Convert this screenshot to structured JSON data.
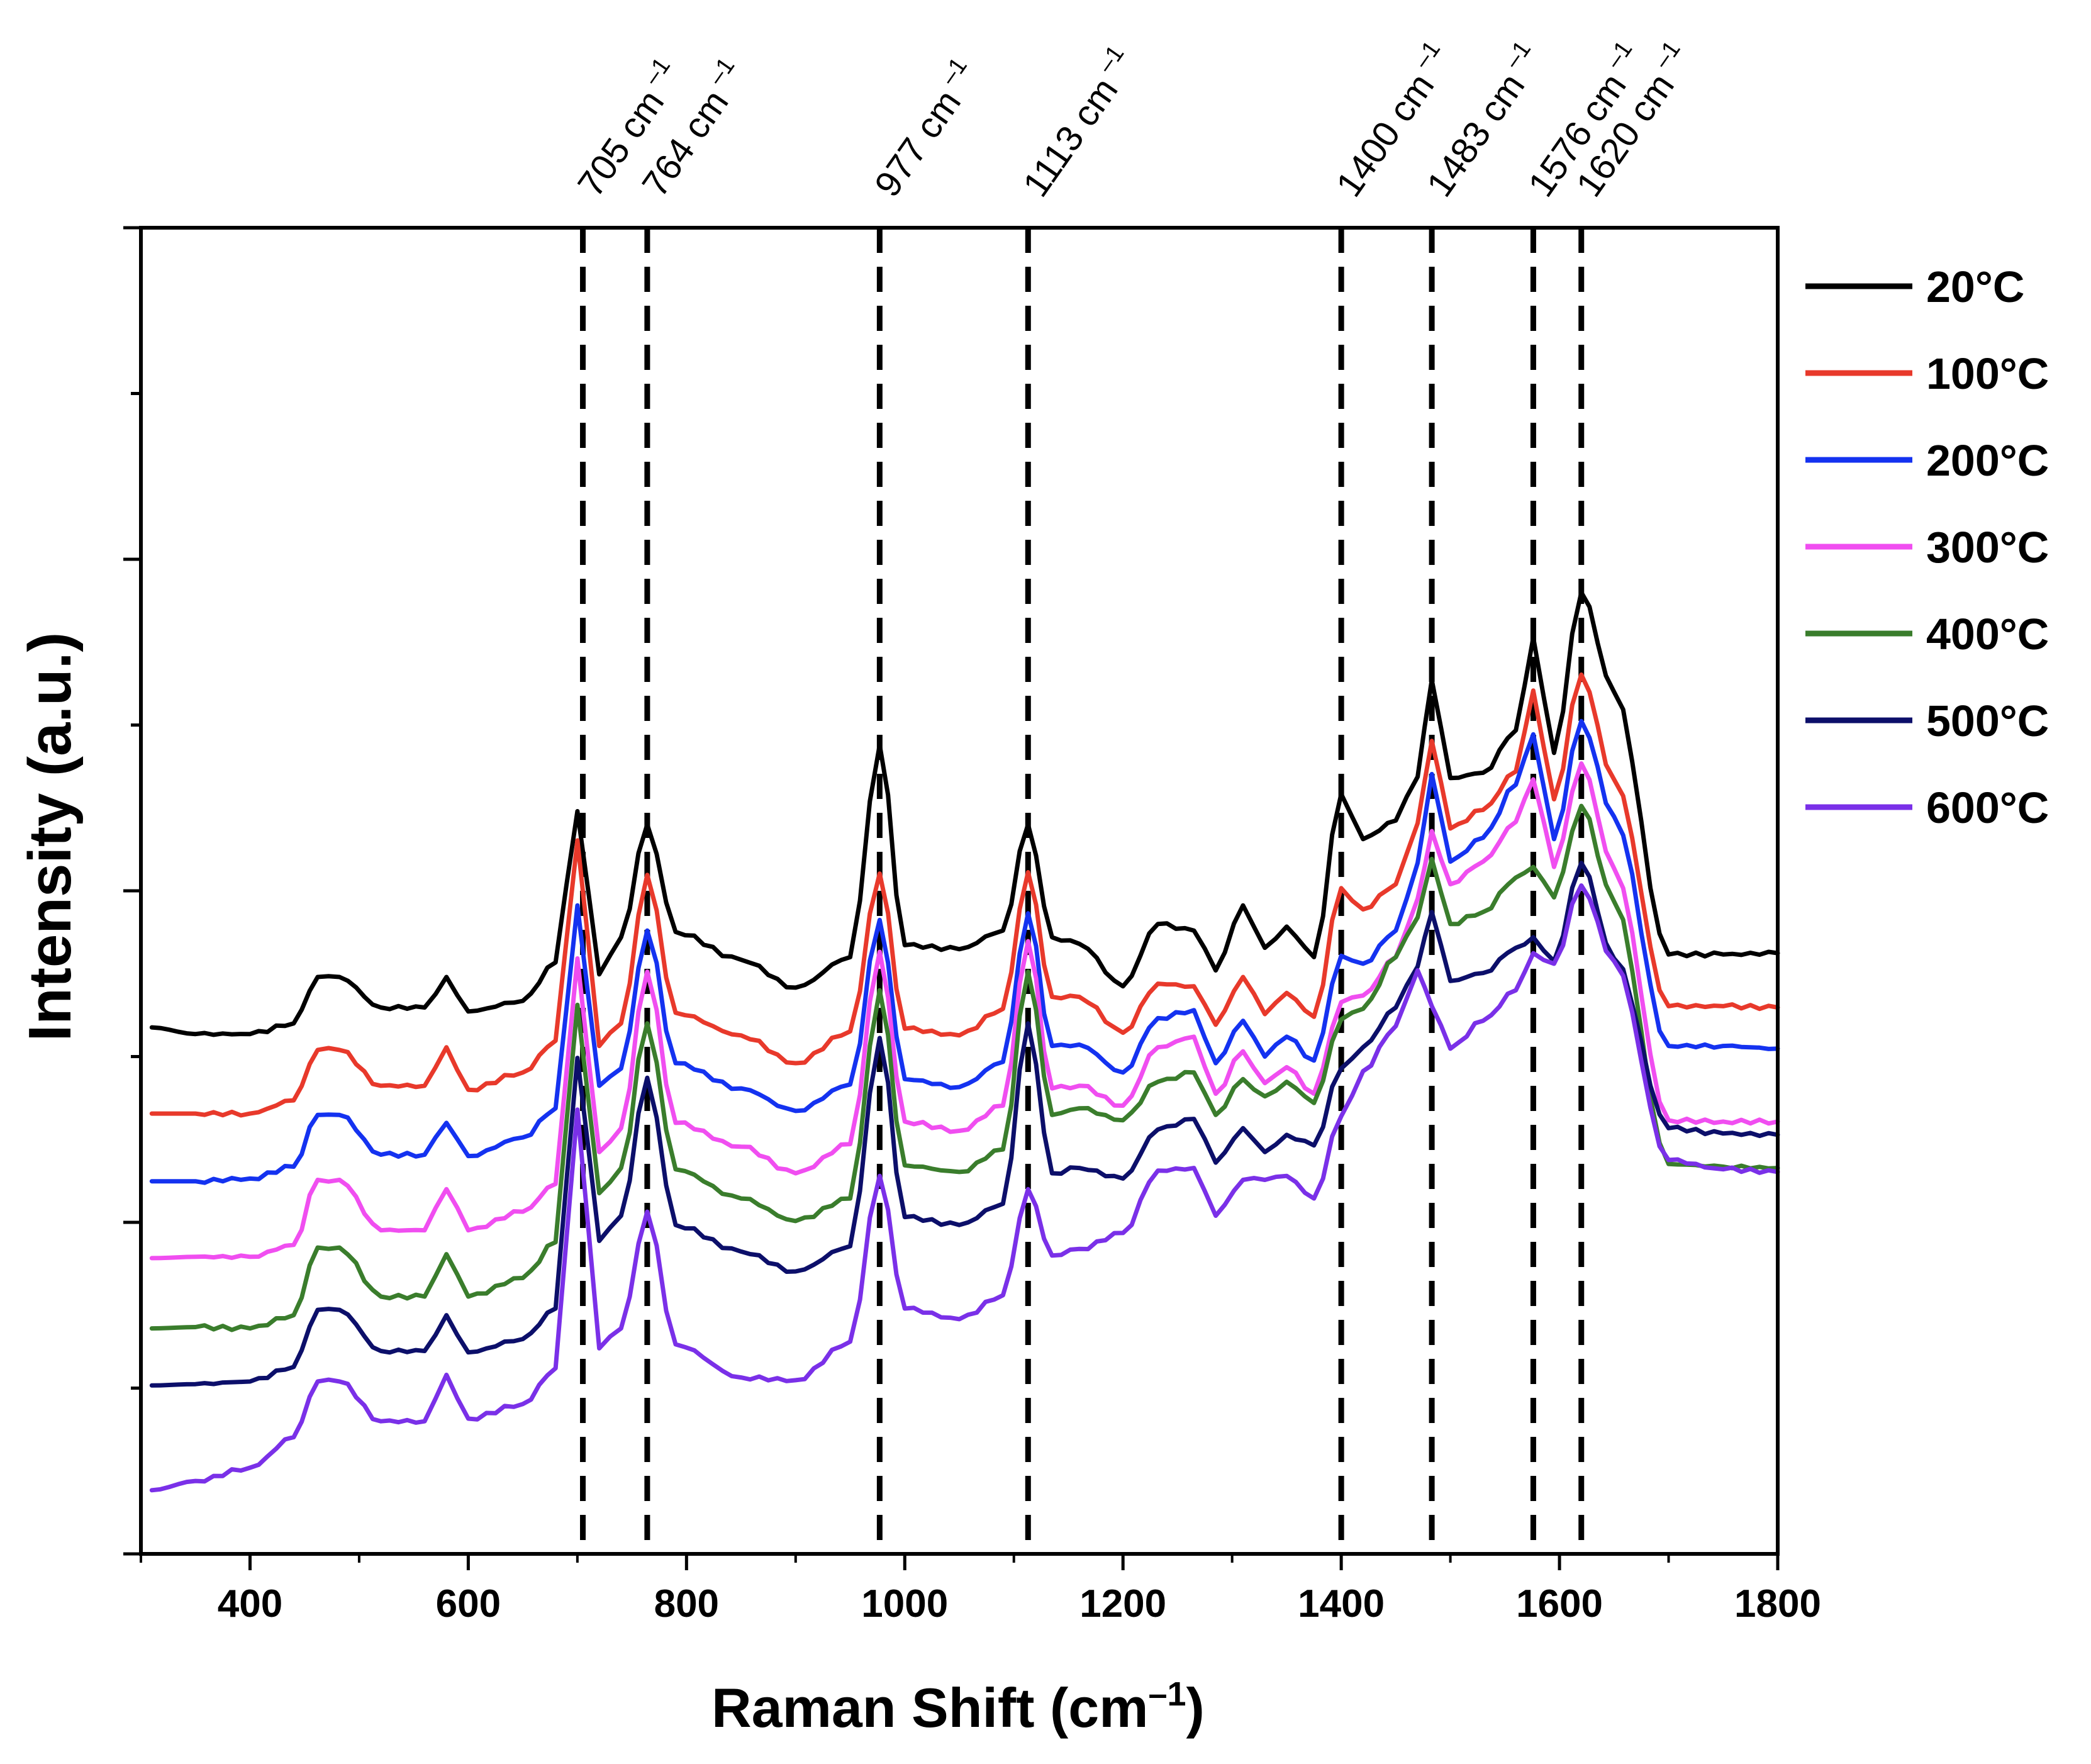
{
  "chart_data": {
    "type": "line",
    "title": "",
    "xlabel": "Raman Shift (cm",
    "xlabel_sup": "–1",
    "xlabel_close": ")",
    "ylabel": "Intensity (a.u.)",
    "xlim": [
      300,
      1800
    ],
    "ylim": [
      0,
      100
    ],
    "x_ticks": [
      400,
      600,
      800,
      1000,
      1200,
      1400,
      1600,
      1800
    ],
    "x_tick_labels": [
      "400",
      "600",
      "800",
      "1000",
      "1200",
      "1400",
      "1600",
      "1800"
    ],
    "y_tick_labels_shown": false,
    "legend_position": "right",
    "peak_lines": [
      {
        "x": 705,
        "label": "705 cm",
        "sup": "–1"
      },
      {
        "x": 764,
        "label": "764 cm",
        "sup": "–1"
      },
      {
        "x": 977,
        "label": "977 cm",
        "sup": "–1"
      },
      {
        "x": 1113,
        "label": "1113 cm",
        "sup": "–1"
      },
      {
        "x": 1400,
        "label": "1400 cm",
        "sup": "–1"
      },
      {
        "x": 1483,
        "label": "1483 cm",
        "sup": "–1"
      },
      {
        "x": 1576,
        "label": "1576 cm",
        "sup": "–1"
      },
      {
        "x": 1620,
        "label": "1620 cm",
        "sup": "–1"
      }
    ],
    "series": [
      {
        "name": "20°C",
        "color": "#000000",
        "x": [
          310,
          350,
          400,
          440,
          462,
          482,
          520,
          560,
          580,
          600,
          650,
          680,
          700,
          720,
          740,
          764,
          790,
          850,
          900,
          950,
          977,
          1000,
          1050,
          1090,
          1113,
          1135,
          1160,
          1200,
          1232,
          1265,
          1285,
          1310,
          1330,
          1350,
          1375,
          1400,
          1420,
          1450,
          1470,
          1483,
          1500,
          1530,
          1560,
          1576,
          1595,
          1620,
          1650,
          1700,
          1750,
          1800
        ],
        "y": [
          39.7,
          39.2,
          39.2,
          40,
          43.5,
          43.5,
          41.2,
          41.2,
          43.5,
          40.9,
          41.7,
          44.6,
          56,
          43.7,
          46.5,
          55,
          46.9,
          44.8,
          42.7,
          45,
          61,
          45.9,
          45.6,
          47,
          55,
          46.5,
          46,
          42.8,
          47.5,
          47,
          44,
          48.9,
          45.7,
          47.3,
          45,
          57.3,
          53.9,
          55.3,
          58.6,
          65.9,
          58.5,
          58.9,
          62.1,
          69.1,
          60.4,
          72.5,
          65,
          45.2,
          45.2,
          45.3
        ]
      },
      {
        "name": "100°C",
        "color": "#e8392b",
        "x": [
          310,
          350,
          400,
          440,
          462,
          482,
          520,
          560,
          580,
          600,
          650,
          680,
          700,
          720,
          740,
          764,
          790,
          850,
          900,
          950,
          977,
          1000,
          1050,
          1090,
          1113,
          1135,
          1160,
          1200,
          1232,
          1265,
          1285,
          1310,
          1330,
          1350,
          1375,
          1400,
          1420,
          1450,
          1470,
          1483,
          1500,
          1530,
          1560,
          1576,
          1595,
          1620,
          1650,
          1700,
          1750,
          1800
        ],
        "y": [
          33.2,
          33.2,
          33.2,
          34.2,
          38,
          38,
          35.3,
          35.3,
          38.2,
          35,
          36.3,
          38.7,
          53.8,
          38.3,
          40,
          51.2,
          40.8,
          39.1,
          37,
          39.4,
          51.3,
          39.6,
          39.1,
          41.1,
          51.4,
          42,
          42,
          39.3,
          43,
          42.8,
          39.9,
          43.5,
          40.7,
          42.3,
          40.5,
          50.2,
          48.6,
          50.5,
          55.1,
          61.3,
          54.7,
          56.1,
          59,
          65.1,
          56.9,
          66.3,
          58.4,
          41.3,
          41.3,
          41.2
        ]
      },
      {
        "name": "200°C",
        "color": "#1432f0",
        "x": [
          310,
          350,
          400,
          440,
          462,
          482,
          520,
          560,
          580,
          600,
          650,
          680,
          700,
          720,
          740,
          764,
          790,
          850,
          900,
          950,
          977,
          1000,
          1050,
          1090,
          1113,
          1135,
          1160,
          1200,
          1232,
          1265,
          1285,
          1310,
          1330,
          1350,
          1375,
          1400,
          1420,
          1450,
          1470,
          1483,
          1500,
          1530,
          1560,
          1576,
          1595,
          1620,
          1650,
          1700,
          1750,
          1800
        ],
        "y": [
          28.1,
          28.1,
          28.3,
          29.2,
          33.1,
          33.1,
          30.1,
          30.1,
          32.5,
          30,
          31.4,
          33.6,
          48.9,
          35.3,
          36.6,
          47,
          37,
          35.1,
          33.4,
          35.4,
          47.8,
          35.8,
          35.2,
          37.1,
          48.3,
          38.3,
          38.4,
          36.3,
          40.4,
          41,
          37,
          40.2,
          37.5,
          39,
          37.2,
          45.1,
          44.5,
          47,
          52.1,
          58.8,
          52.2,
          54,
          58,
          61.8,
          53.9,
          62.8,
          55.6,
          38.3,
          38.3,
          38.1
        ]
      },
      {
        "name": "300°C",
        "color": "#f04ef0",
        "x": [
          310,
          350,
          400,
          440,
          462,
          482,
          520,
          560,
          580,
          600,
          650,
          680,
          700,
          720,
          740,
          764,
          790,
          850,
          900,
          950,
          977,
          1000,
          1050,
          1090,
          1113,
          1135,
          1160,
          1200,
          1232,
          1265,
          1285,
          1310,
          1330,
          1350,
          1375,
          1400,
          1420,
          1450,
          1470,
          1483,
          1500,
          1530,
          1560,
          1576,
          1595,
          1620,
          1650,
          1700,
          1750,
          1800
        ],
        "y": [
          22.3,
          22.4,
          22.4,
          23.3,
          28.2,
          28.2,
          24.4,
          24.4,
          27.5,
          24.4,
          25.8,
          27.9,
          44.9,
          30.3,
          32.1,
          43.9,
          32.5,
          30.7,
          28.7,
          30.9,
          45.4,
          32.6,
          31.9,
          33.8,
          46.2,
          35.1,
          35.3,
          33.8,
          38.2,
          39,
          34.7,
          37.9,
          35.5,
          36.7,
          34.7,
          41.6,
          42.1,
          45,
          49.4,
          54.5,
          50.5,
          52.2,
          55.2,
          58.4,
          51.8,
          59.6,
          51.7,
          32.7,
          32.6,
          32.6
        ]
      },
      {
        "name": "400°C",
        "color": "#3a7d2c",
        "x": [
          310,
          350,
          400,
          440,
          462,
          482,
          520,
          560,
          580,
          600,
          650,
          680,
          700,
          720,
          740,
          764,
          790,
          850,
          900,
          950,
          977,
          1000,
          1050,
          1090,
          1113,
          1135,
          1160,
          1200,
          1232,
          1265,
          1285,
          1310,
          1330,
          1350,
          1375,
          1400,
          1420,
          1450,
          1470,
          1483,
          1500,
          1530,
          1560,
          1576,
          1595,
          1620,
          1650,
          1700,
          1750,
          1800
        ],
        "y": [
          17,
          17.1,
          17,
          18,
          23.1,
          23.1,
          19.4,
          19.4,
          22.6,
          19.4,
          20.8,
          23.5,
          41.4,
          27.2,
          29.1,
          40,
          29,
          26.8,
          25.1,
          26.8,
          42.5,
          29.3,
          28.8,
          30.5,
          43.9,
          33.1,
          33.6,
          32.7,
          35.6,
          36.3,
          33.1,
          35.8,
          34.5,
          35.6,
          34,
          40.3,
          41.1,
          45,
          48,
          52.4,
          47.5,
          48.4,
          51,
          51.8,
          49.5,
          56.4,
          49.2,
          29.4,
          29.2,
          29.1
        ]
      },
      {
        "name": "500°C",
        "color": "#0c0f6a",
        "x": [
          310,
          350,
          400,
          440,
          462,
          482,
          520,
          560,
          580,
          600,
          650,
          680,
          700,
          720,
          740,
          764,
          790,
          850,
          900,
          950,
          977,
          1000,
          1050,
          1090,
          1113,
          1135,
          1160,
          1200,
          1232,
          1265,
          1285,
          1310,
          1330,
          1350,
          1375,
          1400,
          1420,
          1450,
          1470,
          1483,
          1500,
          1530,
          1560,
          1576,
          1595,
          1620,
          1650,
          1700,
          1750,
          1800
        ],
        "y": [
          12.7,
          12.8,
          13,
          14.1,
          18.4,
          18.4,
          15.3,
          15.3,
          18,
          15.2,
          16.2,
          18.5,
          37.4,
          23.6,
          25.5,
          35.9,
          24.8,
          22.8,
          21.3,
          23.2,
          38.9,
          25.4,
          24.8,
          26.4,
          40,
          28.7,
          29.1,
          28.3,
          32,
          32.8,
          29.5,
          32.1,
          30.3,
          31.6,
          30.8,
          36.6,
          38.2,
          41.2,
          44.3,
          48.4,
          43.2,
          43.8,
          45.7,
          46.5,
          44.7,
          52.1,
          44.9,
          32.1,
          31.7,
          31.6
        ]
      },
      {
        "name": "600°C",
        "color": "#7a30e8",
        "x": [
          310,
          350,
          400,
          440,
          462,
          482,
          520,
          560,
          580,
          600,
          650,
          680,
          700,
          720,
          740,
          764,
          790,
          850,
          900,
          950,
          977,
          1000,
          1050,
          1090,
          1113,
          1135,
          1160,
          1200,
          1232,
          1265,
          1285,
          1310,
          1330,
          1350,
          1375,
          1400,
          1420,
          1450,
          1470,
          1483,
          1500,
          1530,
          1560,
          1576,
          1595,
          1620,
          1650,
          1700,
          1750,
          1800
        ],
        "y": [
          4.8,
          5.5,
          6.5,
          8.8,
          13,
          13,
          10,
          10,
          13.5,
          10.2,
          11.3,
          14,
          33.5,
          15.5,
          17,
          25.8,
          15.8,
          13.3,
          13.1,
          16,
          28.5,
          18.5,
          17.7,
          19.5,
          27.5,
          22.5,
          23,
          24.2,
          28.9,
          29.1,
          25.5,
          28.2,
          28.2,
          28.5,
          26.8,
          33,
          36.4,
          39.8,
          44,
          41.3,
          38.1,
          40.2,
          42.5,
          45.3,
          44.5,
          50.4,
          44.7,
          29.7,
          29,
          28.8
        ]
      }
    ]
  }
}
